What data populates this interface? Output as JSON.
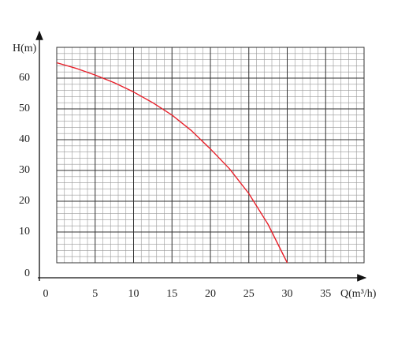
{
  "chart_data": {
    "type": "line",
    "x_label": "Q(m³/h)",
    "y_label": "H(m)",
    "x": [
      0,
      2.5,
      5,
      7.5,
      10,
      12.5,
      15,
      17.5,
      20,
      22.5,
      25,
      27.5,
      30
    ],
    "series": [
      {
        "color": "#e8202a",
        "values": [
          65,
          63.2,
          61,
          58.5,
          55.5,
          52,
          48,
          43,
          37,
          30.5,
          22.5,
          12.5,
          0
        ]
      }
    ],
    "xlim": [
      0,
      40
    ],
    "ylim": [
      0,
      70
    ],
    "xticks": [
      0,
      5,
      10,
      15,
      20,
      25,
      30,
      35
    ],
    "yticks": [
      0,
      10,
      20,
      30,
      40,
      50,
      60
    ],
    "grid": true,
    "minor_divisions": 5
  }
}
